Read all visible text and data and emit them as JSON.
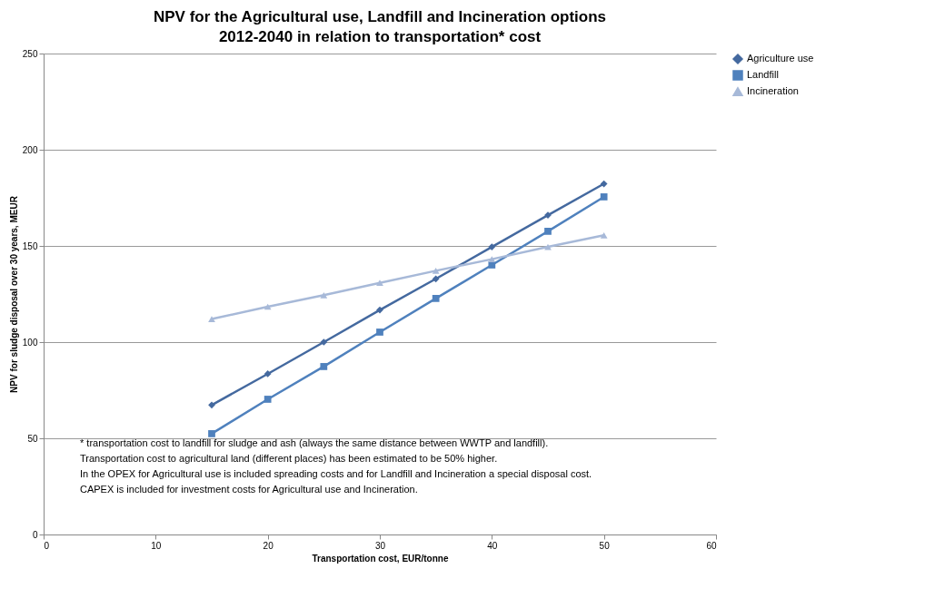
{
  "chart_data": {
    "type": "line",
    "title": "NPV for the Agricultural use, Landfill and Incineration options 2012-2040 in relation to transportation* cost",
    "xlabel": "Transportation cost, EUR/tonne",
    "ylabel": "NPV for sludge disposal over 30 years, MEUR",
    "x": [
      15,
      20,
      25,
      30,
      35,
      40,
      45,
      50
    ],
    "series": [
      {
        "name": "Agriculture use",
        "color": "#44699f",
        "marker": "diamond",
        "values": [
          67.3,
          83.5,
          100,
          116.7,
          132.9,
          149.5,
          166,
          182.3
        ]
      },
      {
        "name": "Landfill",
        "color": "#4f81bd",
        "marker": "square",
        "values": [
          52.4,
          70.3,
          87.3,
          105.2,
          122.7,
          140.1,
          157.6,
          175.5
        ]
      },
      {
        "name": "Incineration",
        "color": "#a7b9d8",
        "marker": "triangle",
        "values": [
          112,
          118.4,
          124.4,
          130.8,
          137.1,
          143.1,
          149.5,
          155.5
        ]
      }
    ],
    "xlim": [
      0,
      60
    ],
    "xticks": [
      0,
      10,
      20,
      30,
      40,
      50,
      60
    ],
    "ylim": [
      0,
      250
    ],
    "yticks": [
      0,
      50,
      100,
      150,
      200,
      250
    ],
    "grid": "y",
    "legend": "right",
    "annotations": [
      "* transportation cost to landfill for sludge and ash (always the same distance between WWTP and landfill).",
      "Transportation cost to agricultural land (different places) has been estimated to be 50% higher.",
      "In the OPEX for Agricultural use is included spreading costs and for Landfill and Incineration a special disposal cost.",
      "CAPEX is included for investment costs for Agricultural use and Incineration."
    ]
  }
}
